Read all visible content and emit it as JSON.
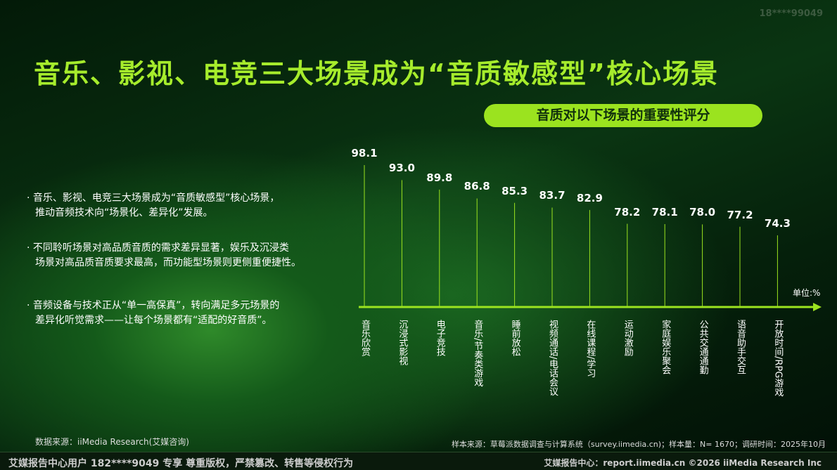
{
  "watermark": "18****99049",
  "header": {
    "title": "音乐、影视、电竞三大场景成为“音质敏感型”核心场景"
  },
  "bullets": [
    [
      "· 音乐、影视、电竞三大场景成为“音质敏感型”核心场景，",
      "推动音频技术向“场景化、差异化”发展。"
    ],
    [
      "· 不同聆听场景对高品质音质的需求差异显著，娱乐及沉浸类",
      "场景对高品质音质要求最高，而功能型场景则更侧重便捷性。"
    ],
    [
      "· 音频设备与技术正从“单一高保真”，转向满足多元场景的",
      "差异化听觉需求——让每个场景都有“适配的好音质”。"
    ]
  ],
  "chart_data": {
    "type": "lollipop",
    "title": "音质对以下场景的重要性评分",
    "unit": "单位:%",
    "color": "#9be31f",
    "categories": [
      "音乐欣赏",
      "沉浸式影视",
      "电子竞技",
      "音乐/节奏类游戏",
      "睡前放松",
      "视频通话/电话会议",
      "在线课程/学习",
      "运动激励",
      "家庭娱乐聚会",
      "公共交通通勤",
      "语音助手交互",
      "开放时间/RPG游戏"
    ],
    "values": [
      98.1,
      93.0,
      89.8,
      86.8,
      85.3,
      83.7,
      82.9,
      78.2,
      78.1,
      78.0,
      77.2,
      74.3
    ],
    "value_labels": [
      "98.1",
      "93.0",
      "89.8",
      "86.8",
      "85.3",
      "83.7",
      "82.9",
      "78.2",
      "78.1",
      "78.0",
      "77.2",
      "74.3"
    ],
    "ylim": [
      50,
      100
    ]
  },
  "source": "数据来源：iiMedia Research(艾媒咨询)",
  "sample_note": "样本来源：草莓派数据调查与计算系统（survey.iimedia.cn)；样本量：N= 1670；调研时间：2025年10月",
  "footer": {
    "left": "艾媒报告中心用户 182****9049 专享 尊重版权，严禁篡改、转售等侵权行为",
    "right": "艾媒报告中心：report.iimedia.cn   ©2026  iiMedia Research  Inc"
  }
}
